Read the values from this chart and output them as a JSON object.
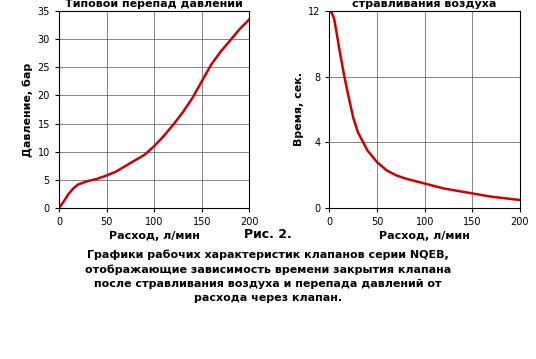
{
  "left_title": "Типовой перепад давлений",
  "right_title": "Приблизительное\nвремя закрытия после\nстравливания воздуха",
  "xlabel": "Расход, л/мин",
  "left_ylabel": "Давление, бар",
  "right_ylabel": "Время, сек.",
  "left_xlim": [
    0,
    200
  ],
  "left_ylim": [
    0,
    35
  ],
  "right_xlim": [
    0,
    200
  ],
  "right_ylim": [
    0,
    12
  ],
  "left_xticks": [
    0,
    50,
    100,
    150,
    200
  ],
  "left_yticks": [
    0,
    5,
    10,
    15,
    20,
    25,
    30,
    35
  ],
  "right_xticks": [
    0,
    50,
    100,
    150,
    200
  ],
  "right_yticks": [
    0,
    4,
    8,
    12
  ],
  "line_color": "#cc0000",
  "line_width": 1.8,
  "fig_caption_bold": "Рис. 2.",
  "fig_caption_text": "Графики рабочих характеристик клапанов серии NQEB,\nотображающие зависимость времени закрытия клапана\nпосле стравливания воздуха и перепада давлений от\nрасхода через клапан.",
  "background_color": "#ffffff",
  "grid_color": "#555555",
  "left_curve_x": [
    0,
    5,
    10,
    15,
    20,
    30,
    40,
    50,
    60,
    70,
    80,
    90,
    100,
    110,
    120,
    130,
    140,
    150,
    160,
    170,
    180,
    190,
    200
  ],
  "left_curve_y": [
    0,
    1.2,
    2.5,
    3.5,
    4.2,
    4.8,
    5.2,
    5.8,
    6.5,
    7.5,
    8.5,
    9.5,
    11.0,
    12.8,
    14.8,
    17.0,
    19.5,
    22.5,
    25.5,
    27.8,
    29.8,
    31.8,
    33.5
  ],
  "right_curve_x": [
    1,
    3,
    5,
    8,
    10,
    15,
    20,
    25,
    30,
    40,
    50,
    60,
    70,
    80,
    100,
    120,
    150,
    170,
    200
  ],
  "right_curve_y": [
    12.0,
    11.8,
    11.5,
    10.5,
    9.8,
    8.2,
    6.8,
    5.5,
    4.6,
    3.5,
    2.8,
    2.3,
    2.0,
    1.8,
    1.5,
    1.2,
    0.9,
    0.7,
    0.5
  ]
}
